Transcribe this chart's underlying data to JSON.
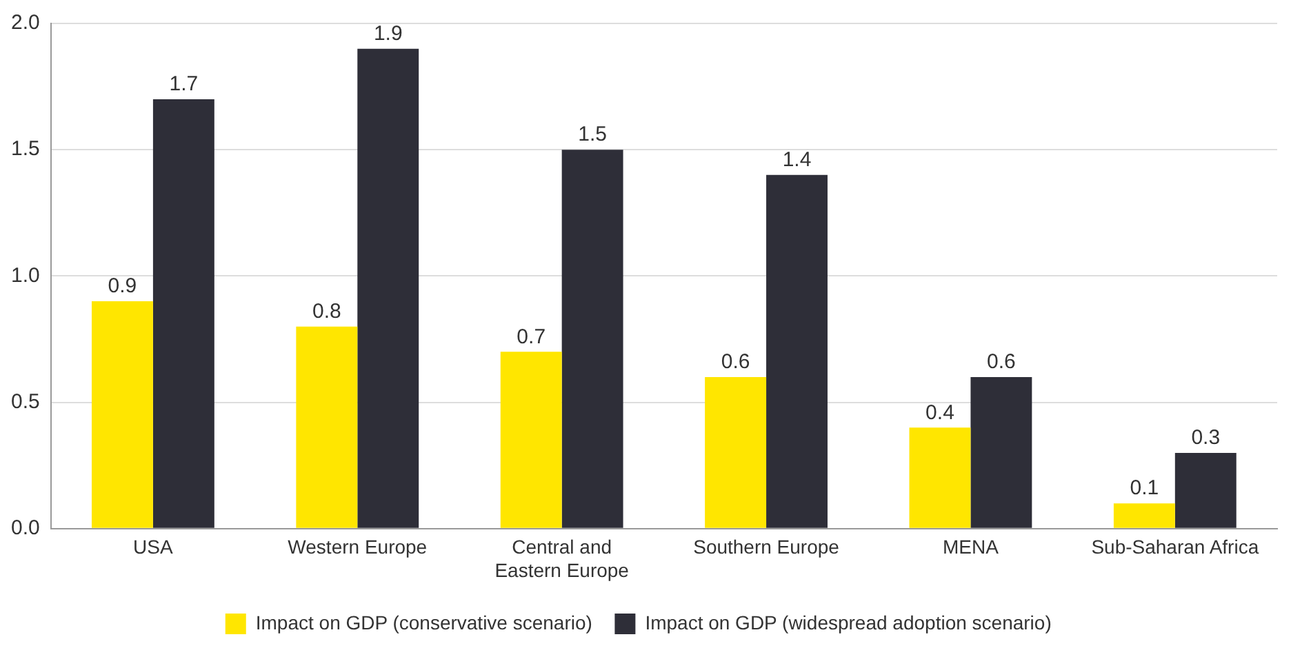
{
  "chart_data": {
    "type": "bar",
    "categories": [
      "USA",
      "Western Europe",
      "Central and Eastern Europe",
      "Southern Europe",
      "MENA",
      "Sub-Saharan Africa"
    ],
    "series": [
      {
        "name": "Impact on GDP (conservative scenario)",
        "color": "#ffe600",
        "values": [
          0.9,
          0.8,
          0.7,
          0.6,
          0.4,
          0.1
        ]
      },
      {
        "name": "Impact on GDP (widespread adoption scenario)",
        "color": "#2e2e38",
        "values": [
          1.7,
          1.9,
          1.5,
          1.4,
          0.6,
          0.3
        ]
      }
    ],
    "ylim": [
      0,
      2
    ],
    "yticks": [
      {
        "value": 0,
        "label": "0.0"
      },
      {
        "value": 0.5,
        "label": "0.5"
      },
      {
        "value": 1,
        "label": "1.0"
      },
      {
        "value": 1.5,
        "label": "1.5"
      },
      {
        "value": 2,
        "label": "2.0"
      }
    ],
    "grid": "y",
    "legend": "bottom",
    "data_labels": true
  }
}
